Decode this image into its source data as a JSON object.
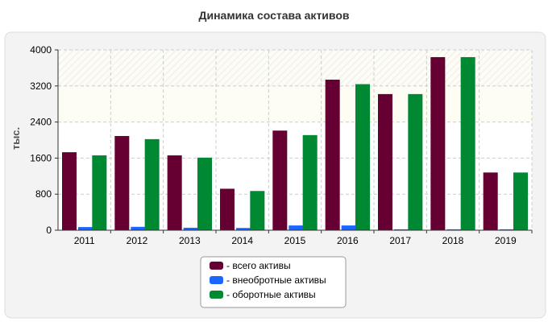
{
  "chart_data": {
    "type": "bar",
    "title": "Динамика состава активов",
    "ylabel": "тыс.",
    "xlabel": "",
    "categories": [
      "2011",
      "2012",
      "2013",
      "2014",
      "2015",
      "2016",
      "2017",
      "2018",
      "2019"
    ],
    "series": [
      {
        "name": "- всего активы",
        "color": "#660033",
        "values": [
          1730,
          2090,
          1660,
          920,
          2210,
          3340,
          3020,
          3840,
          1280
        ]
      },
      {
        "name": "- внеобротные активы",
        "color": "#1a66ff",
        "values": [
          70,
          75,
          55,
          50,
          105,
          105,
          20,
          20,
          20
        ]
      },
      {
        "name": "- оборотные активы",
        "color": "#008833",
        "values": [
          1660,
          2020,
          1610,
          870,
          2110,
          3240,
          3020,
          3840,
          1280
        ]
      }
    ],
    "ylim": [
      0,
      4000
    ],
    "yticks": [
      0,
      800,
      1600,
      2400,
      3200,
      4000
    ],
    "grid": true,
    "legend_position": "bottom"
  }
}
